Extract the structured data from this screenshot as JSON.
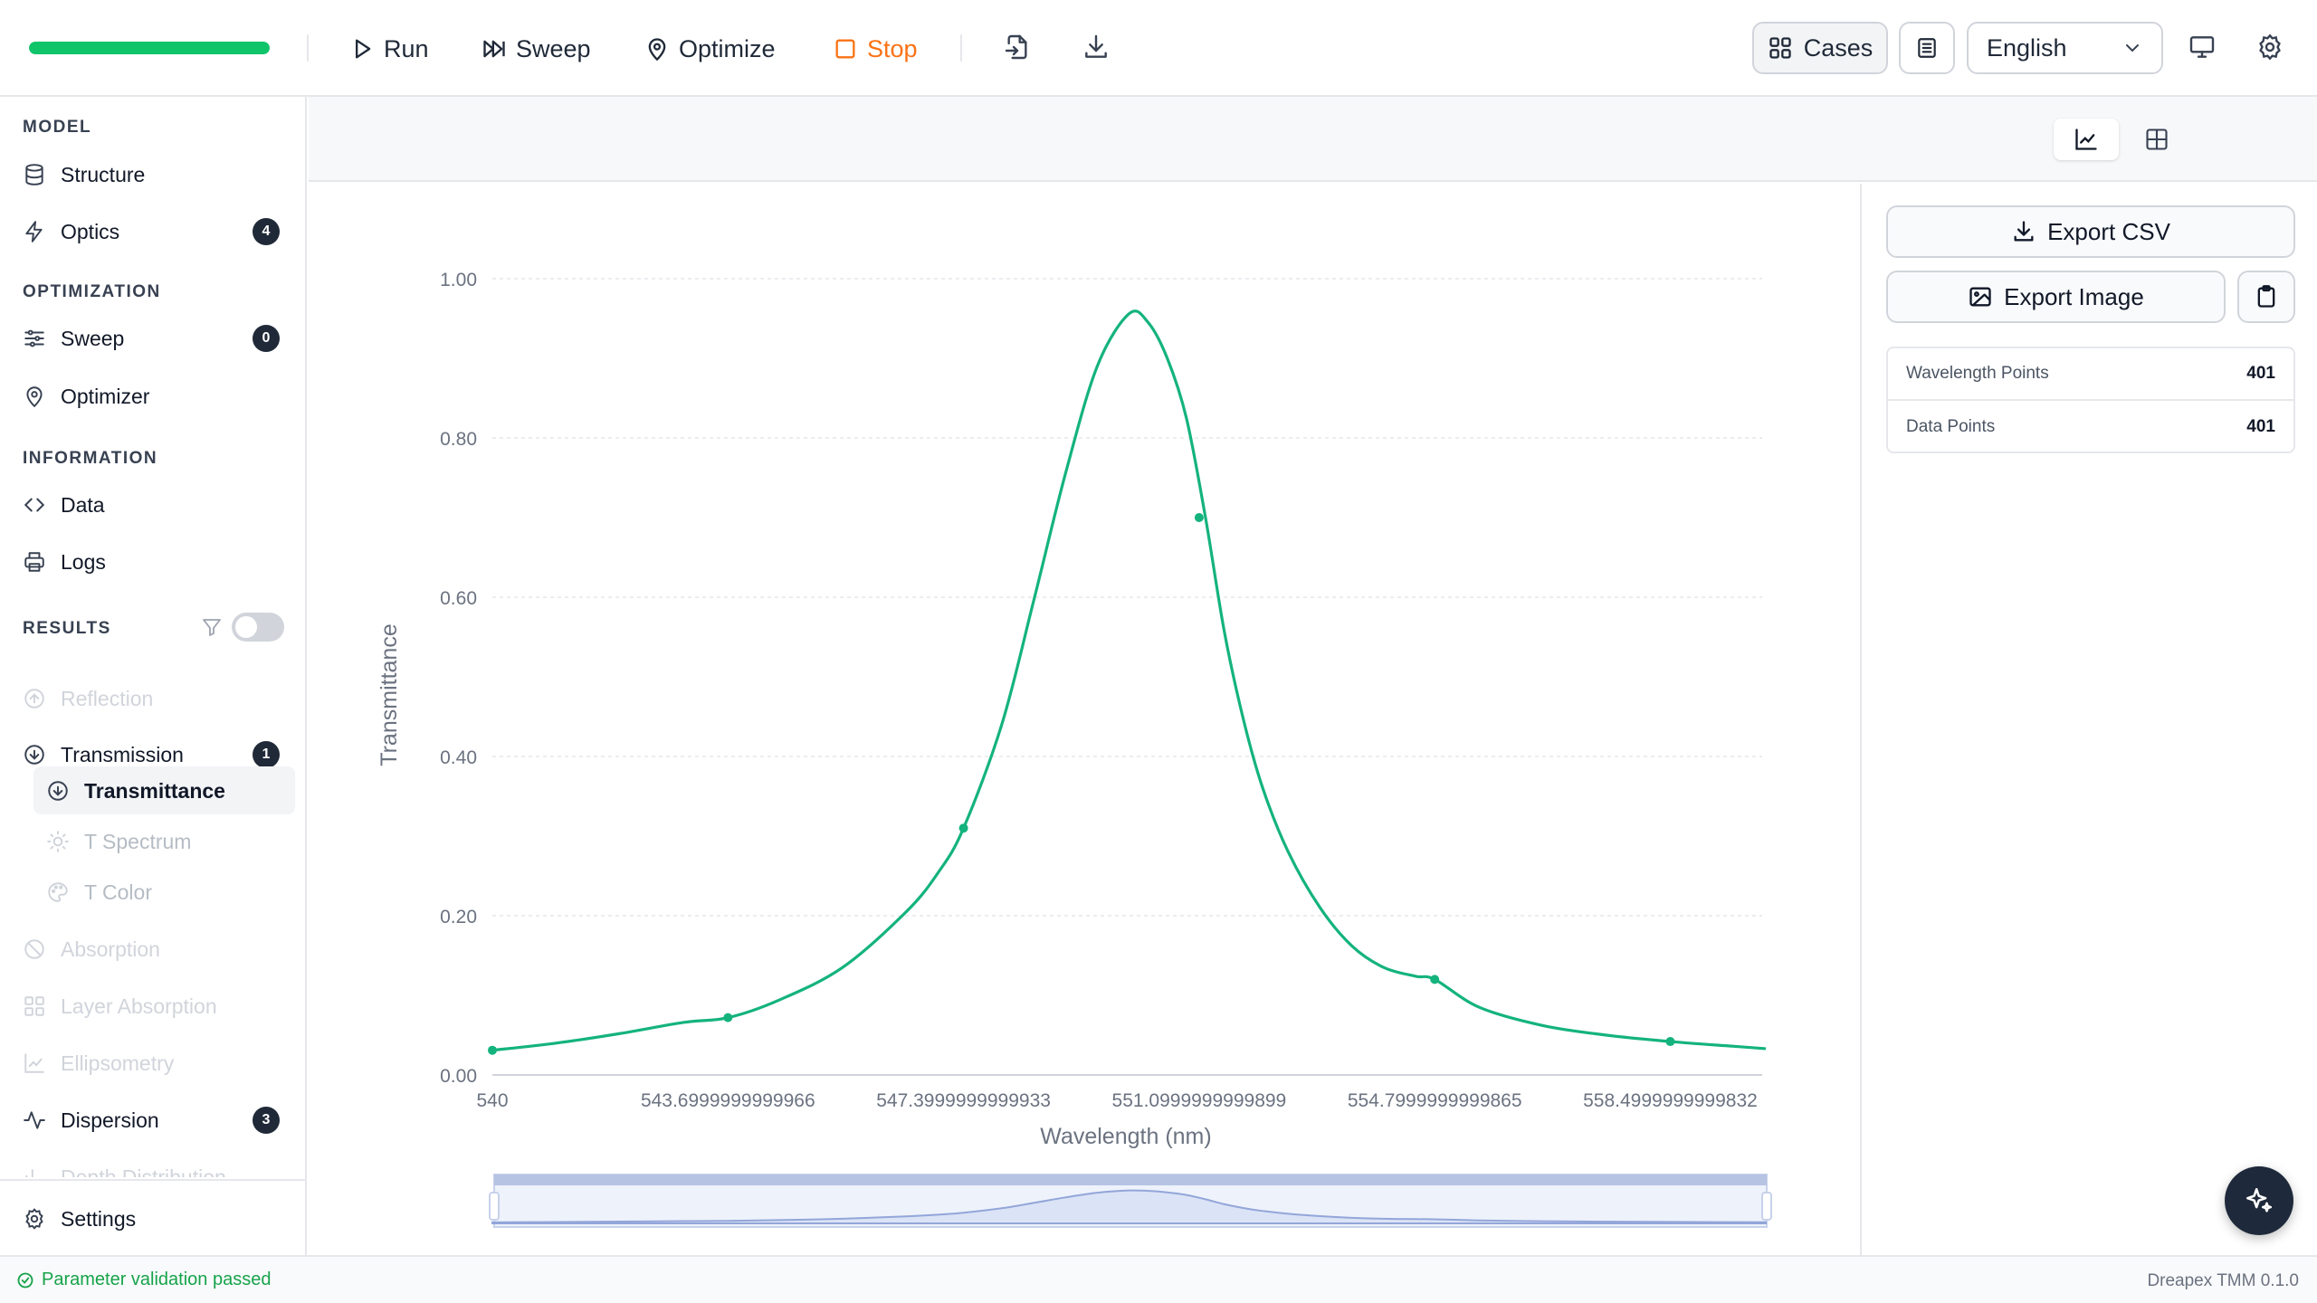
{
  "toolbar": {
    "progress_fraction": 1.0,
    "run_label": "Run",
    "sweep_label": "Sweep",
    "optimize_label": "Optimize",
    "stop_label": "Stop",
    "cases_label": "Cases",
    "language": "English",
    "colors": {
      "progress": "#10c46a",
      "stop": "#f97316"
    }
  },
  "sidebar": {
    "model_header": "MODEL",
    "structure": "Structure",
    "optics": "Optics",
    "optics_badge": "4",
    "optimization_header": "OPTIMIZATION",
    "sweep": "Sweep",
    "sweep_badge": "0",
    "optimizer": "Optimizer",
    "information_header": "INFORMATION",
    "data": "Data",
    "logs": "Logs",
    "results_header": "RESULTS",
    "results_toggle_on": false,
    "reflection": "Reflection",
    "transmission": "Transmission",
    "transmission_badge": "1",
    "transmittance": "Transmittance",
    "t_spectrum": "T Spectrum",
    "t_color": "T Color",
    "absorption": "Absorption",
    "layer_absorption": "Layer Absorption",
    "ellipsometry": "Ellipsometry",
    "dispersion": "Dispersion",
    "dispersion_badge": "3",
    "depth_distribution": "Depth Distribution",
    "settings": "Settings"
  },
  "panel": {
    "export_csv": "Export CSV",
    "export_image": "Export Image",
    "stats": [
      {
        "label": "Wavelength Points",
        "value": "401"
      },
      {
        "label": "Data Points",
        "value": "401"
      }
    ]
  },
  "status": {
    "message": "Parameter validation passed",
    "version": "Dreapex TMM 0.1.0"
  },
  "chart_data": {
    "type": "line",
    "title": "",
    "xlabel": "Wavelength (nm)",
    "ylabel": "Transmittance",
    "xlim": [
      540,
      560
    ],
    "ylim": [
      0,
      1.0
    ],
    "x_ticks": [
      540,
      543.7,
      547.4,
      551.1,
      554.8,
      558.5
    ],
    "x_tick_labels": [
      "540",
      "543.6999999999966",
      "547.3999999999933",
      "551.0999999999899",
      "554.7999999999865",
      "558.4999999999832"
    ],
    "y_ticks": [
      0,
      0.2,
      0.4,
      0.6,
      0.8,
      1.0
    ],
    "y_tick_labels": [
      "0.00",
      "0.20",
      "0.40",
      "0.60",
      "0.80",
      "1.00"
    ],
    "grid": true,
    "series": [
      {
        "color": "#14b37d",
        "x": [
          540,
          541,
          542,
          543,
          543.7,
          544.5,
          545.5,
          546.5,
          547,
          547.4,
          548,
          548.5,
          549,
          549.5,
          550,
          550.3,
          550.6,
          550.9,
          551.2,
          551.5,
          551.8,
          552.1,
          552.5,
          553,
          553.5,
          554,
          554.5,
          554.8,
          555.5,
          556.5,
          557.5,
          558.5,
          559.5,
          560
        ],
        "y": [
          0.031,
          0.04,
          0.052,
          0.066,
          0.072,
          0.094,
          0.135,
          0.205,
          0.254,
          0.31,
          0.44,
          0.595,
          0.755,
          0.89,
          0.956,
          0.945,
          0.9,
          0.825,
          0.7,
          0.555,
          0.445,
          0.36,
          0.28,
          0.21,
          0.162,
          0.135,
          0.124,
          0.12,
          0.085,
          0.062,
          0.05,
          0.042,
          0.036,
          0.033
        ]
      }
    ],
    "markers": [
      {
        "x": 540,
        "y": 0.031
      },
      {
        "x": 543.7,
        "y": 0.072
      },
      {
        "x": 547.4,
        "y": 0.31
      },
      {
        "x": 551.1,
        "y": 0.7
      },
      {
        "x": 554.8,
        "y": 0.12
      },
      {
        "x": 558.5,
        "y": 0.042
      }
    ]
  }
}
